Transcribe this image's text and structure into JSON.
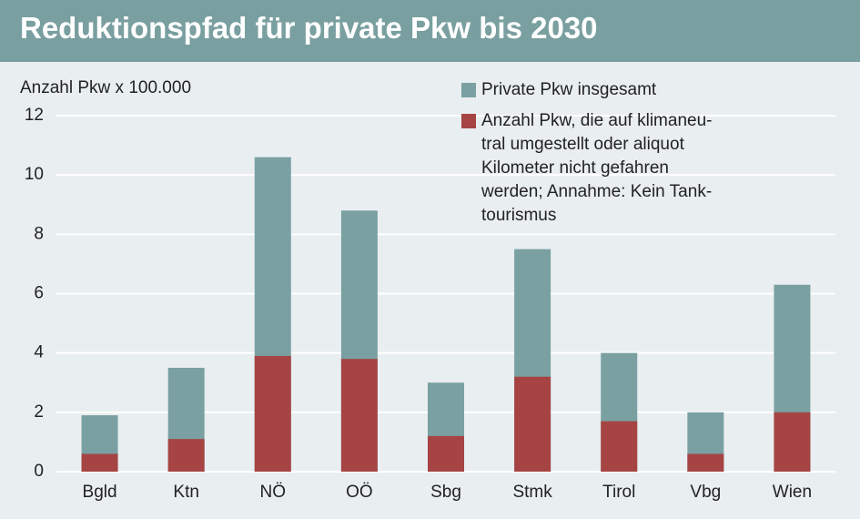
{
  "chart_data": {
    "type": "bar",
    "title": "Reduktionspfad für private Pkw bis 2030",
    "y_label": "Anzahl Pkw x 100.000",
    "categories": [
      "Bgld",
      "Ktn",
      "NÖ",
      "OÖ",
      "Sbg",
      "Stmk",
      "Tirol",
      "Vbg",
      "Wien"
    ],
    "series": [
      {
        "name": "Private Pkw insgesamt",
        "color": "#7aa0a2",
        "values": [
          1.9,
          3.5,
          10.6,
          8.8,
          3.0,
          7.5,
          4.0,
          2.0,
          6.3
        ]
      },
      {
        "name": "Anzahl Pkw, die auf klimaneu-\ntral umgestellt oder aliquot\nKilometer nicht gefahren\nwerden; Annahme: Kein Tank-\ntourismus",
        "color": "#a64444",
        "values": [
          0.6,
          1.1,
          3.9,
          3.8,
          1.2,
          3.2,
          1.7,
          0.6,
          2.0
        ]
      }
    ],
    "ylim": [
      0,
      12
    ],
    "yticks": [
      0,
      2,
      4,
      6,
      8,
      10,
      12
    ],
    "grid": true,
    "legend": "top-right"
  }
}
